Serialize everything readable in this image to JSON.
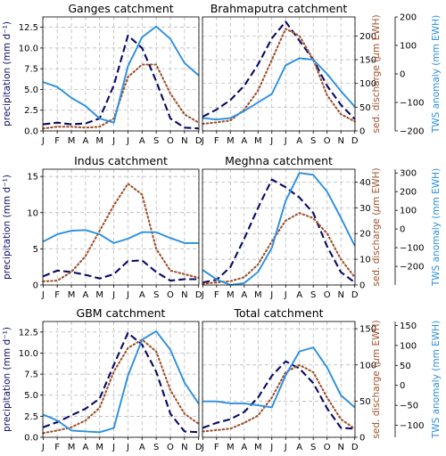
{
  "months": [
    "J",
    "F",
    "M",
    "A",
    "M",
    "J",
    "J",
    "A",
    "S",
    "O",
    "N",
    "D"
  ],
  "colors": {
    "precip": "#0a0a66",
    "sed": "#a0522d",
    "tws": "#2b8fe0"
  },
  "left_ylabel": "precipitation (mm d⁻¹)",
  "sed_ylabel_pre": "sed. discharge (",
  "sed_ylabel_mu": "μ",
  "sed_ylabel_post": "m EWH)",
  "tws_ylabel": "TWS anomaly (mm EWH)",
  "chart_data": [
    {
      "type": "line",
      "title": "Ganges catchment",
      "x": [
        "J",
        "F",
        "M",
        "A",
        "M",
        "J",
        "J",
        "A",
        "S",
        "O",
        "N",
        "D"
      ],
      "precip_ylim": [
        0,
        13.75
      ],
      "precip_ticks": [
        "0.0",
        "2.5",
        "5.0",
        "7.5",
        "10.0",
        "12.5"
      ],
      "series": [
        {
          "values": [
            0.8,
            1.0,
            0.8,
            0.9,
            1.5,
            5.5,
            11.5,
            10.0,
            6.0,
            1.5,
            0.4,
            0.3
          ]
        },
        {
          "values": [
            0.3,
            0.5,
            0.5,
            0.4,
            0.5,
            1.5,
            6.5,
            8.0,
            8.0,
            4.5,
            2.0,
            1.0
          ]
        },
        {
          "values": [
            5.9,
            5.3,
            4.0,
            3.0,
            1.5,
            1.0,
            7.8,
            11.3,
            12.6,
            11.1,
            8.2,
            6.7
          ]
        }
      ]
    },
    {
      "type": "line",
      "title": "Brahmaputra catchment",
      "x": [
        "J",
        "F",
        "M",
        "A",
        "M",
        "J",
        "J",
        "A",
        "S",
        "O",
        "N",
        "D"
      ],
      "sed_ylim": [
        0,
        240
      ],
      "sed_ticks": [
        "0",
        "50",
        "100",
        "150",
        "200"
      ],
      "tws_ylim": [
        -200,
        200
      ],
      "tws_ticks": [
        "−200",
        "−100",
        "0",
        "100",
        "200"
      ],
      "series": [
        {
          "values": [
            30,
            45,
            65,
            95,
            140,
            195,
            230,
            190,
            150,
            95,
            55,
            25
          ]
        },
        {
          "values": [
            15,
            18,
            22,
            45,
            85,
            150,
            215,
            200,
            150,
            75,
            35,
            20
          ]
        },
        {
          "values": [
            -155,
            -160,
            -155,
            -130,
            -100,
            -70,
            30,
            55,
            50,
            0,
            -60,
            -115
          ]
        }
      ]
    },
    {
      "type": "line",
      "title": "Indus catchment",
      "x": [
        "J",
        "F",
        "M",
        "A",
        "M",
        "J",
        "J",
        "A",
        "S",
        "O",
        "N",
        "D"
      ],
      "precip_ylim": [
        0,
        16
      ],
      "precip_ticks": [
        "0",
        "5",
        "10",
        "15"
      ],
      "series": [
        {
          "values": [
            1.2,
            2.0,
            1.8,
            1.4,
            0.9,
            1.5,
            3.3,
            3.4,
            1.8,
            0.6,
            0.8,
            0.8
          ]
        },
        {
          "values": [
            0.5,
            0.6,
            1.8,
            4.0,
            7.5,
            11.0,
            14.0,
            12.5,
            5.0,
            2.0,
            1.5,
            1.0
          ]
        },
        {
          "values": [
            6.0,
            7.0,
            7.5,
            7.6,
            7.0,
            5.8,
            6.4,
            7.3,
            7.3,
            6.5,
            5.8,
            5.8
          ]
        }
      ]
    },
    {
      "type": "line",
      "title": "Meghna catchment",
      "x": [
        "J",
        "F",
        "M",
        "A",
        "M",
        "J",
        "J",
        "A",
        "S",
        "O",
        "N",
        "D"
      ],
      "sed_ylim": [
        0,
        45
      ],
      "sed_ticks": [
        "0",
        "10",
        "20",
        "30",
        "40"
      ],
      "tws_ylim": [
        -300,
        320
      ],
      "tws_ticks": [
        "−200",
        "−100",
        "0",
        "100",
        "200",
        "300"
      ],
      "series": [
        {
          "values": [
            1.0,
            2.0,
            7.0,
            18.0,
            30.0,
            41.0,
            38.0,
            34.0,
            28.0,
            15.0,
            5.0,
            1.0
          ]
        },
        {
          "values": [
            0.5,
            1.0,
            1.5,
            3.0,
            8.0,
            17.0,
            25.0,
            28.0,
            26.0,
            20.0,
            10.0,
            3.0
          ]
        },
        {
          "values": [
            -220,
            -270,
            -300,
            -290,
            -230,
            -100,
            150,
            300,
            290,
            200,
            60,
            -90
          ]
        }
      ]
    },
    {
      "type": "line",
      "title": "GBM catchment",
      "x": [
        "J",
        "F",
        "M",
        "A",
        "M",
        "J",
        "J",
        "A",
        "S",
        "O",
        "N",
        "D"
      ],
      "precip_ylim": [
        0,
        13.75
      ],
      "precip_ticks": [
        "0.0",
        "2.5",
        "5.0",
        "7.5",
        "10.0",
        "12.5"
      ],
      "series": [
        {
          "values": [
            1.2,
            1.8,
            2.6,
            3.4,
            4.6,
            8.6,
            12.4,
            11.0,
            7.8,
            2.8,
            0.7,
            0.6
          ]
        },
        {
          "values": [
            0.5,
            0.8,
            1.2,
            2.0,
            3.5,
            7.8,
            10.6,
            11.6,
            10.2,
            5.6,
            2.8,
            1.6
          ]
        },
        {
          "values": [
            2.7,
            2.0,
            0.8,
            0.7,
            0.6,
            1.1,
            7.3,
            11.6,
            12.6,
            10.4,
            6.5,
            4.0
          ]
        }
      ]
    },
    {
      "type": "line",
      "title": "Total catchment",
      "x": [
        "J",
        "F",
        "M",
        "A",
        "M",
        "J",
        "J",
        "A",
        "S",
        "O",
        "N",
        "D"
      ],
      "sed_ylim": [
        0,
        160
      ],
      "sed_ticks": [
        "0",
        "50",
        "100",
        "150"
      ],
      "tws_ylim": [
        -130,
        160
      ],
      "tws_ticks": [
        "−100",
        "−50",
        "0",
        "50",
        "100",
        "150"
      ],
      "series": [
        {
          "values": [
            13,
            20,
            25,
            35,
            55,
            85,
            105,
            95,
            75,
            40,
            13,
            12
          ]
        },
        {
          "values": [
            8,
            10,
            12,
            20,
            30,
            55,
            90,
            100,
            90,
            55,
            25,
            12
          ]
        },
        {
          "values": [
            -40,
            -40,
            -45,
            -45,
            -50,
            -55,
            25,
            85,
            95,
            45,
            -25,
            -55
          ]
        }
      ]
    }
  ]
}
